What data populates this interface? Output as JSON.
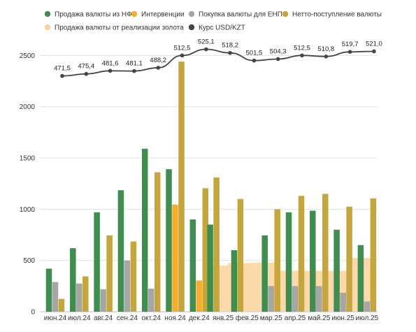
{
  "chart_data": {
    "type": "bar",
    "categories": [
      "июн.24",
      "июл.24",
      "авг.24",
      "сен.24",
      "окт.24",
      "ноя.24",
      "дек.24",
      "янв.25",
      "фев.25",
      "мар.25",
      "апр.25",
      "май.25",
      "июн.25",
      "июл.25"
    ],
    "ylim": [
      0,
      2700
    ],
    "yticks": [
      0,
      500,
      1000,
      1500,
      2000,
      2500
    ],
    "grid": true,
    "legend_position": "top",
    "series": [
      {
        "name": "Продажа валюты из НФ",
        "kind": "bar",
        "color": "#3e8e4f",
        "values": [
          420,
          620,
          970,
          1185,
          1590,
          1390,
          900,
          850,
          600,
          745,
          970,
          985,
          800,
          650
        ]
      },
      {
        "name": "Интервенции",
        "kind": "bar",
        "color": "#f5ad2b",
        "values": [
          null,
          null,
          null,
          null,
          null,
          1045,
          305,
          null,
          null,
          null,
          null,
          null,
          null,
          null
        ]
      },
      {
        "name": "Покупка валюты для ЕНПФ",
        "kind": "bar",
        "color": "#a6a6a6",
        "values": [
          290,
          275,
          220,
          500,
          225,
          null,
          null,
          null,
          null,
          250,
          250,
          250,
          185,
          100
        ]
      },
      {
        "name": "Нетто-поступление валюты",
        "kind": "bar",
        "color": "#c4a63b",
        "values": [
          125,
          345,
          745,
          685,
          1360,
          2440,
          1205,
          1310,
          1100,
          1000,
          1130,
          1150,
          1025,
          1105
        ]
      },
      {
        "name": "Продажа валюты от реализации золота",
        "kind": "area",
        "color": "#fbd39c",
        "values": [
          null,
          null,
          null,
          null,
          null,
          null,
          null,
          450,
          475,
          480,
          400,
          400,
          400,
          525
        ]
      },
      {
        "name": "Курс USD/KZT",
        "kind": "line",
        "color": "#444444",
        "values": [
          471.5,
          475.4,
          481.6,
          481.1,
          488.2,
          512.5,
          525.1,
          518.2,
          501.5,
          504.3,
          512.5,
          510.8,
          519.7,
          521.0
        ],
        "labels": [
          "471,5",
          "475,4",
          "481,6",
          "481,1",
          "488,2",
          "512,5",
          "525,1",
          "518,2",
          "501,5",
          "504,3",
          "512,5",
          "510,8",
          "519,7",
          "521,0"
        ],
        "plot_values": [
          2300,
          2320,
          2350,
          2348,
          2380,
          2500,
          2560,
          2525,
          2450,
          2465,
          2500,
          2490,
          2535,
          2540
        ]
      }
    ]
  }
}
